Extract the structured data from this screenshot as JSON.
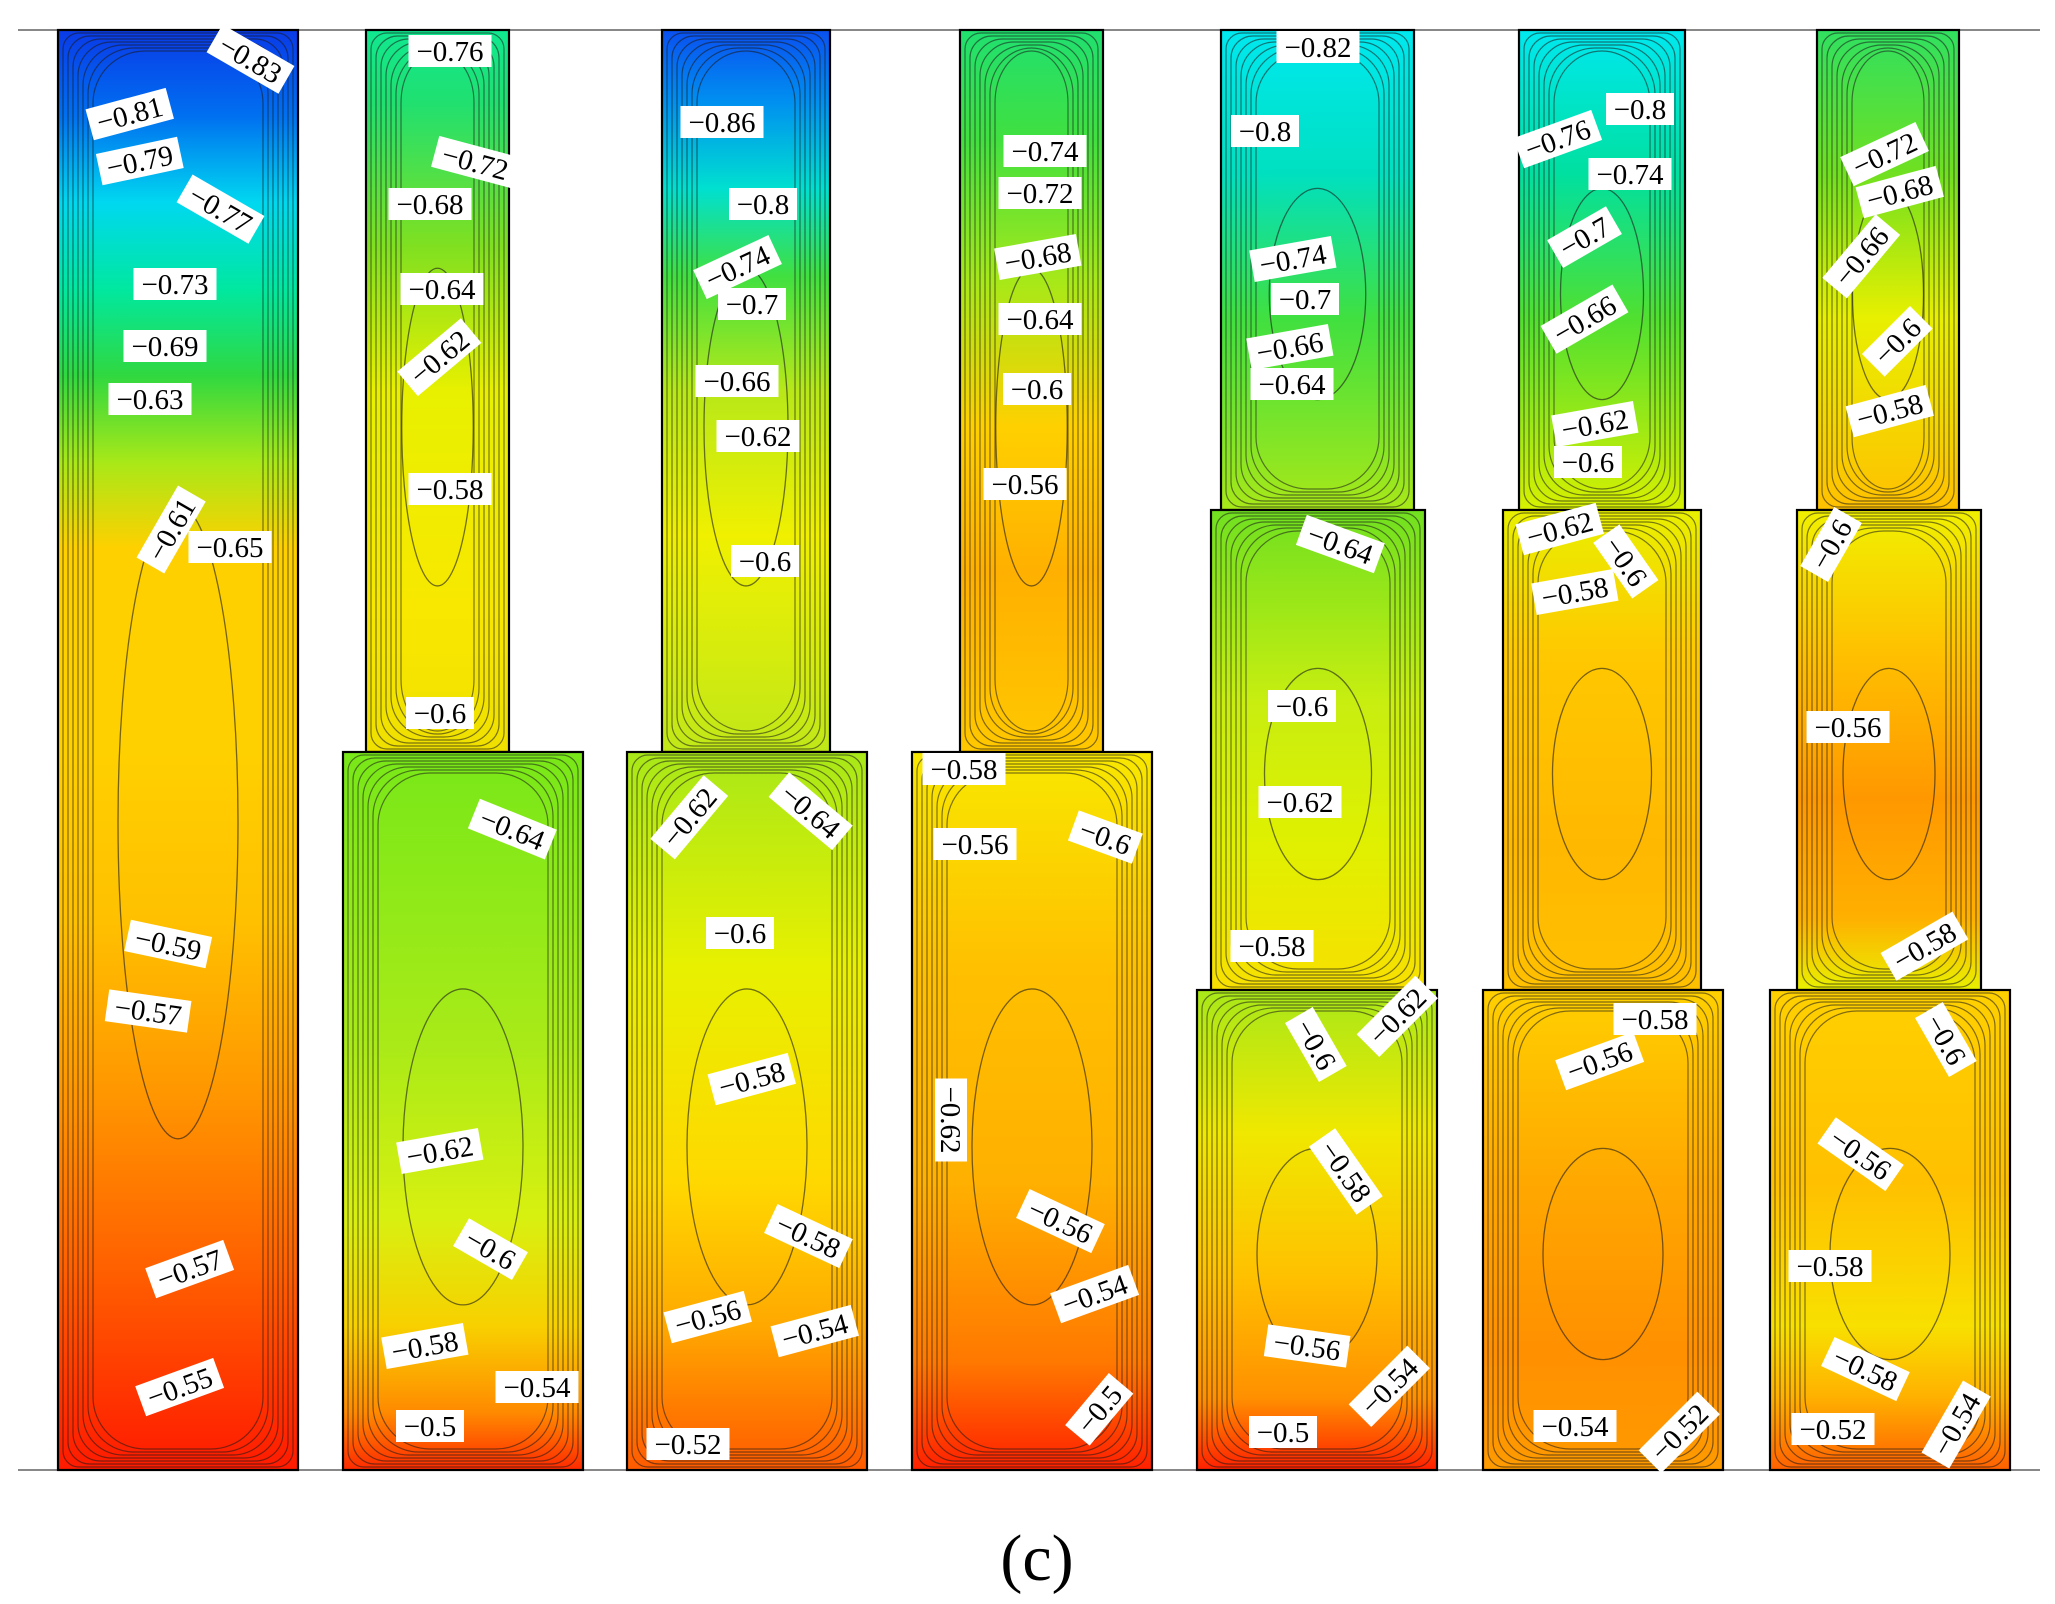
{
  "chart_data": {
    "type": "heatmap",
    "title": "",
    "caption": "(c)",
    "description_type": "contour",
    "colormap": [
      "#0a2fe0",
      "#0060f0",
      "#00d6f0",
      "#00f0c0",
      "#20e070",
      "#70e020",
      "#c8ee10",
      "#f8f800",
      "#ffd000",
      "#ffb000",
      "#ff8a00",
      "#ff5a00",
      "#ff1500"
    ],
    "value_range": [
      -0.86,
      -0.5
    ],
    "panels": [
      {
        "name": "panel-1",
        "segments": [
          {
            "top_color": "#0a3ae8",
            "stops": [
              [
                0,
                "#0a3ae8"
              ],
              [
                0.06,
                "#0070f0"
              ],
              [
                0.12,
                "#00d8f0"
              ],
              [
                0.18,
                "#00e8a0"
              ],
              [
                0.24,
                "#30d840"
              ],
              [
                0.3,
                "#a8e818"
              ],
              [
                0.36,
                "#ffd000"
              ],
              [
                0.5,
                "#ffd000"
              ],
              [
                0.62,
                "#ffc000"
              ],
              [
                0.74,
                "#ff9600"
              ],
              [
                0.86,
                "#ff6000"
              ],
              [
                1,
                "#ff1a00"
              ]
            ]
          }
        ],
        "labels": [
          "-0.83",
          "-0.81",
          "-0.79",
          "-0.77",
          "-0.73",
          "-0.69",
          "-0.63",
          "-0.61",
          "-0.65",
          "-0.59",
          "-0.57",
          "-0.57",
          "-0.55"
        ]
      },
      {
        "name": "panel-2",
        "segments": [
          {
            "stops": [
              [
                0,
                "#10e890"
              ],
              [
                0.1,
                "#20e070"
              ],
              [
                0.3,
                "#80e020"
              ],
              [
                0.5,
                "#e8f000"
              ],
              [
                0.8,
                "#f8e800"
              ],
              [
                1,
                "#f0e000"
              ]
            ]
          },
          {
            "stops": [
              [
                0,
                "#78e818"
              ],
              [
                0.4,
                "#a8ea18"
              ],
              [
                0.65,
                "#d8f010"
              ],
              [
                0.8,
                "#f8d000"
              ],
              [
                0.92,
                "#ff8a00"
              ],
              [
                1,
                "#ff2a00"
              ]
            ]
          }
        ],
        "labels": [
          "-0.76",
          "-0.72",
          "-0.68",
          "-0.64",
          "-0.62",
          "-0.58",
          "-0.6",
          "-0.64",
          "-0.62",
          "-0.6",
          "-0.58",
          "-0.54",
          "-0.5"
        ]
      },
      {
        "name": "panel-3",
        "segments": [
          {
            "stops": [
              [
                0,
                "#0a50f0"
              ],
              [
                0.1,
                "#0090f0"
              ],
              [
                0.22,
                "#00e0d0"
              ],
              [
                0.34,
                "#40e040"
              ],
              [
                0.5,
                "#b8e818"
              ],
              [
                0.7,
                "#f0f000"
              ],
              [
                1,
                "#c0e818"
              ]
            ]
          },
          {
            "stops": [
              [
                0,
                "#a8e818"
              ],
              [
                0.3,
                "#e8f000"
              ],
              [
                0.6,
                "#ffd800"
              ],
              [
                0.8,
                "#ffa800"
              ],
              [
                1,
                "#ff5a00"
              ]
            ]
          }
        ],
        "labels": [
          "-0.86",
          "-0.8",
          "-0.74",
          "-0.7",
          "-0.66",
          "-0.62",
          "-0.6",
          "-0.62",
          "-0.64",
          "-0.6",
          "-0.58",
          "-0.58",
          "-0.56",
          "-0.54",
          "-0.52"
        ]
      },
      {
        "name": "panel-4",
        "segments": [
          {
            "stops": [
              [
                0,
                "#20e070"
              ],
              [
                0.15,
                "#40e040"
              ],
              [
                0.35,
                "#a8e818"
              ],
              [
                0.55,
                "#ffd000"
              ],
              [
                0.75,
                "#ffb000"
              ],
              [
                1,
                "#ffc800"
              ]
            ]
          },
          {
            "stops": [
              [
                0,
                "#f8e800"
              ],
              [
                0.3,
                "#ffc000"
              ],
              [
                0.6,
                "#ffb000"
              ],
              [
                0.85,
                "#ff7800"
              ],
              [
                1,
                "#ff2000"
              ]
            ]
          }
        ],
        "labels": [
          "-0.74",
          "-0.72",
          "-0.68",
          "-0.64",
          "-0.6",
          "-0.56",
          "-0.58",
          "-0.56",
          "-0.6",
          "-0.62",
          "-0.56",
          "-0.54",
          "-0.5"
        ]
      },
      {
        "name": "panel-5",
        "segments": [
          {
            "stops": [
              [
                0,
                "#00e8f0"
              ],
              [
                0.3,
                "#00e0c0"
              ],
              [
                0.6,
                "#40e040"
              ],
              [
                1,
                "#a8e818"
              ]
            ]
          },
          {
            "stops": [
              [
                0,
                "#70e020"
              ],
              [
                0.4,
                "#c8ee10"
              ],
              [
                0.7,
                "#e0f000"
              ],
              [
                1,
                "#f8e000"
              ]
            ]
          },
          {
            "stops": [
              [
                0,
                "#a8e818"
              ],
              [
                0.3,
                "#f0e800"
              ],
              [
                0.6,
                "#ffc000"
              ],
              [
                0.85,
                "#ff9000"
              ],
              [
                1,
                "#ff2000"
              ]
            ]
          }
        ],
        "labels": [
          "-0.82",
          "-0.8",
          "-0.74",
          "-0.7",
          "-0.66",
          "-0.64",
          "-0.64",
          "-0.6",
          "-0.62",
          "-0.58",
          "-0.6",
          "-0.62",
          "-0.58",
          "-0.56",
          "-0.54",
          "-0.5"
        ]
      },
      {
        "name": "panel-6",
        "segments": [
          {
            "stops": [
              [
                0,
                "#00e8f0"
              ],
              [
                0.3,
                "#00e0a0"
              ],
              [
                0.6,
                "#50e030"
              ],
              [
                1,
                "#d8f000"
              ]
            ]
          },
          {
            "stops": [
              [
                0,
                "#e8f000"
              ],
              [
                0.3,
                "#ffc800"
              ],
              [
                0.7,
                "#ffb800"
              ],
              [
                1,
                "#ffc000"
              ]
            ]
          },
          {
            "stops": [
              [
                0,
                "#ffd000"
              ],
              [
                0.4,
                "#ffa800"
              ],
              [
                0.75,
                "#ff9000"
              ],
              [
                1,
                "#ff9a00"
              ]
            ]
          }
        ],
        "labels": [
          "-0.76",
          "-0.8",
          "-0.74",
          "-0.7",
          "-0.66",
          "-0.62",
          "-0.6",
          "-0.62",
          "-0.6",
          "-0.58",
          "-0.58",
          "-0.56",
          "-0.54",
          "-0.52"
        ]
      },
      {
        "name": "panel-7",
        "segments": [
          {
            "stops": [
              [
                0,
                "#30e060"
              ],
              [
                0.3,
                "#70e020"
              ],
              [
                0.6,
                "#e8f000"
              ],
              [
                1,
                "#ffc000"
              ]
            ]
          },
          {
            "stops": [
              [
                0,
                "#f0f000"
              ],
              [
                0.3,
                "#ffc000"
              ],
              [
                0.6,
                "#ff9800"
              ],
              [
                0.85,
                "#ffb000"
              ],
              [
                1,
                "#e8f000"
              ]
            ]
          },
          {
            "stops": [
              [
                0,
                "#ffd000"
              ],
              [
                0.4,
                "#ffc000"
              ],
              [
                0.7,
                "#f8e000"
              ],
              [
                0.85,
                "#ffb000"
              ],
              [
                1,
                "#ff6000"
              ]
            ]
          }
        ],
        "labels": [
          "-0.72",
          "-0.68",
          "-0.66",
          "-0.6",
          "-0.58",
          "-0.6",
          "-0.56",
          "-0.58",
          "-0.6",
          "-0.56",
          "-0.58",
          "-0.58",
          "-0.52",
          "-0.54"
        ]
      }
    ]
  }
}
